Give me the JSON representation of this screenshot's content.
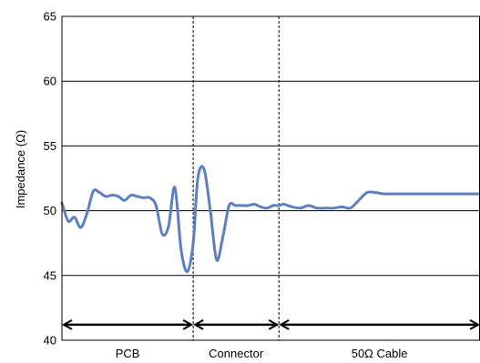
{
  "chart_data": {
    "type": "line",
    "title": "",
    "xlabel": "",
    "ylabel": "Impedance (Ω)",
    "ylim": [
      40,
      65
    ],
    "yticks": [
      40,
      45,
      50,
      55,
      60,
      65
    ],
    "xlim": [
      0,
      100
    ],
    "grid": "horizontal",
    "line_color": "#5b7fc2",
    "sections": [
      {
        "label": "PCB",
        "start": 0,
        "end": 31.4
      },
      {
        "label": "Connector",
        "start": 31.4,
        "end": 51.9
      },
      {
        "label": "50Ω Cable",
        "start": 51.9,
        "end": 100
      }
    ],
    "series": [
      {
        "name": "",
        "x": [
          0,
          1.5,
          3,
          4.5,
          6,
          7.5,
          9,
          10.5,
          12,
          13.5,
          15,
          16.5,
          18,
          19.5,
          21,
          22.5,
          24,
          25.5,
          27,
          28.5,
          30,
          31.4,
          32.5,
          34,
          35.5,
          37,
          38.5,
          40,
          41.5,
          43,
          44.5,
          46,
          47.5,
          49,
          50.5,
          51.9,
          53,
          55,
          57,
          59,
          61,
          63,
          65,
          67,
          69,
          71,
          73,
          75,
          77,
          79,
          81,
          83,
          85,
          87,
          89,
          91,
          93,
          95,
          97,
          100
        ],
        "y": [
          50.6,
          49.2,
          49.5,
          48.7,
          49.8,
          51.5,
          51.4,
          51.1,
          51.2,
          51.1,
          50.8,
          51.2,
          51.1,
          51.0,
          51.0,
          50.4,
          48.2,
          48.8,
          51.8,
          47.0,
          45.3,
          47.5,
          52.5,
          53.2,
          50.0,
          46.2,
          48.0,
          50.4,
          50.4,
          50.4,
          50.4,
          50.5,
          50.3,
          50.2,
          50.4,
          50.4,
          50.5,
          50.3,
          50.2,
          50.4,
          50.2,
          50.2,
          50.2,
          50.3,
          50.2,
          50.8,
          51.4,
          51.4,
          51.3,
          51.3,
          51.3,
          51.3,
          51.3,
          51.3,
          51.3,
          51.3,
          51.3,
          51.3,
          51.3,
          51.3
        ]
      }
    ]
  }
}
